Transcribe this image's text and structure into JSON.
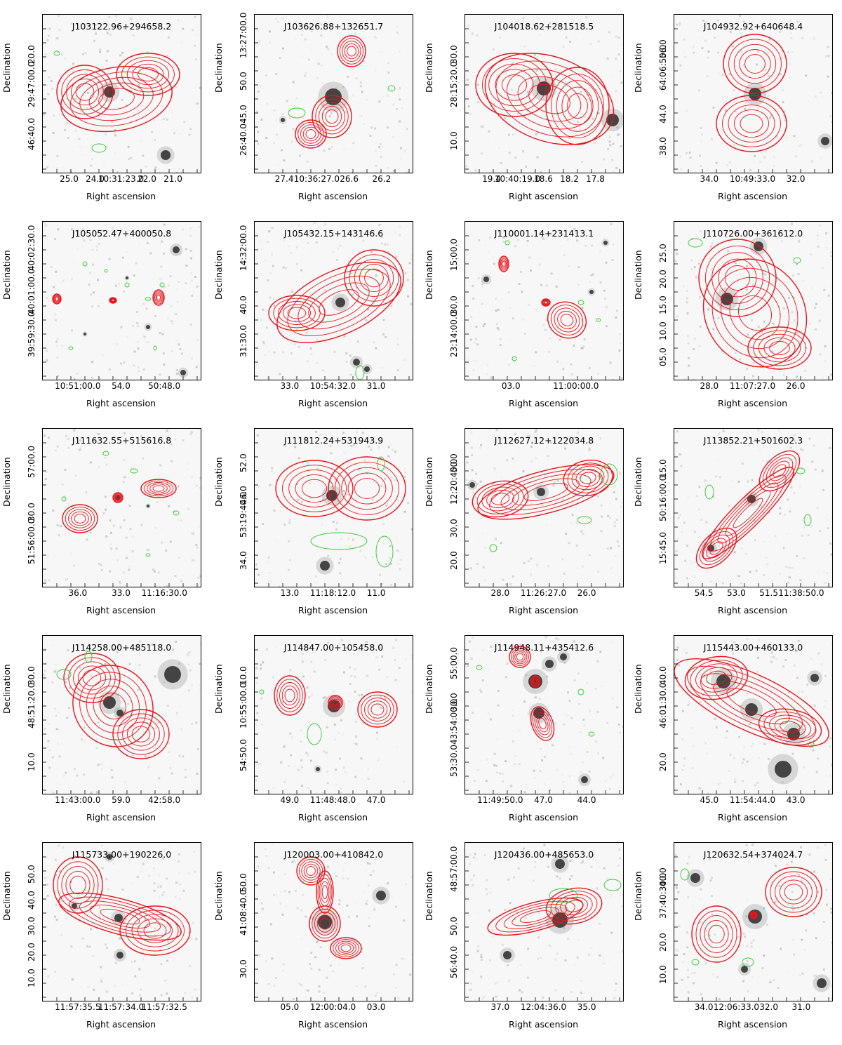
{
  "colors": {
    "radio": "#e8141b",
    "optical": "#2ecc2e",
    "frame": "#000000"
  },
  "axis": {
    "xlabel": "Right ascension",
    "ylabel": "Declination"
  },
  "panels": [
    {
      "title": "J103122.96+294658.2",
      "yticks": [
        "20.0",
        "29:47:00.0",
        "46:40.0"
      ],
      "xticks": [
        "25.0",
        "24.0",
        "10:31:23.0",
        "22.0",
        "21.0"
      ]
    },
    {
      "title": "J103626.88+132651.7",
      "yticks": [
        "13:27:00.0",
        "50.0",
        "45.0",
        "26:40.0"
      ],
      "xticks": [
        "27.4",
        "10:36:27.0",
        "26.6",
        "26.2"
      ]
    },
    {
      "title": "J104018.62+281518.5",
      "yticks": [
        "30.0",
        "28:15:20.0",
        "10.0"
      ],
      "xticks": [
        "19.4",
        "10:40:19.0",
        "18.6",
        "18.2",
        "17.8"
      ]
    },
    {
      "title": "J104932.92+640648.4",
      "yticks": [
        "56.0",
        "64:06:50.0",
        "44.0",
        "38.0"
      ],
      "xticks": [
        "34.0",
        "10:49:33.0",
        "32.0"
      ]
    },
    {
      "title": "J105052.47+400050.8",
      "yticks": [
        "40:02:30.0",
        "40:01:00.0",
        "39:59:30.0"
      ],
      "xticks": [
        "10:51:00.0",
        "54.0",
        "50:48.0"
      ]
    },
    {
      "title": "J105432.15+143146.6",
      "yticks": [
        "14:32:00.0",
        "40.0",
        "31:30.0"
      ],
      "xticks": [
        "33.0",
        "10:54:32.0",
        "31.0"
      ]
    },
    {
      "title": "J110001.14+231413.1",
      "yticks": [
        "15:00.0",
        "30.0",
        "23:14:00.0"
      ],
      "xticks": [
        "03.0",
        "11:00:00.0"
      ]
    },
    {
      "title": "J110726.00+361612.0",
      "yticks": [
        "25.0",
        "20.0",
        "15.0",
        "10.0",
        "05.0"
      ],
      "xticks": [
        "28.0",
        "11:07:27.0",
        "26.0"
      ]
    },
    {
      "title": "J111632.55+515616.8",
      "yticks": [
        "57:00.0",
        "30.0",
        "51:56:00.0"
      ],
      "xticks": [
        "36.0",
        "33.0",
        "11:16:30.0"
      ]
    },
    {
      "title": "J111812.24+531943.9",
      "yticks": [
        "52.0",
        "46.0",
        "53:19:40.0",
        "34.0"
      ],
      "xticks": [
        "13.0",
        "11:18:12.0",
        "11.0"
      ]
    },
    {
      "title": "J112627.12+122034.8",
      "yticks": [
        "50.0",
        "12:20:40.0",
        "30.0",
        "20.0"
      ],
      "xticks": [
        "28.0",
        "11:26:27.0",
        "26.0"
      ]
    },
    {
      "title": "J113852.21+501602.3",
      "yticks": [
        "15.0",
        "50:16:00.0",
        "15:45.0"
      ],
      "xticks": [
        "54.5",
        "53.0",
        "51.5",
        "11:38:50.0"
      ]
    },
    {
      "title": "J114258.00+485118.0",
      "yticks": [
        "30.0",
        "48:51:20.0",
        "10.0"
      ],
      "xticks": [
        "11:43:00.0",
        "59.0",
        "42:58.0"
      ]
    },
    {
      "title": "J114847.00+105458.0",
      "yticks": [
        "10.0",
        "10:55:00.0",
        "54:50.0"
      ],
      "xticks": [
        "49.0",
        "11:48:48.0",
        "47.0"
      ]
    },
    {
      "title": "J114948.11+435412.6",
      "yticks": [
        "55:00.0",
        "30.0",
        "43:54:00.0",
        "53:30.0"
      ],
      "xticks": [
        "11:49:50.0",
        "47.0",
        "44.0"
      ]
    },
    {
      "title": "J115443.00+460133.0",
      "yticks": [
        "40.0",
        "46:01:30.0",
        "20.0"
      ],
      "xticks": [
        "45.0",
        "11:54:44.0",
        "43.0"
      ]
    },
    {
      "title": "J115733.00+190226.0",
      "yticks": [
        "50.0",
        "40.0",
        "30.0",
        "20.0",
        "10.0"
      ],
      "xticks": [
        "11:57:35.5",
        "11:57:34.0",
        "11:57:32.5"
      ]
    },
    {
      "title": "J120003.00+410842.0",
      "yticks": [
        "50.0",
        "41:08:40.0",
        "30.0"
      ],
      "xticks": [
        "05.0",
        "12:00:04.0",
        "03.0"
      ]
    },
    {
      "title": "J120436.00+485653.0",
      "yticks": [
        "48:57:00.0",
        "50.0",
        "56:40.0"
      ],
      "xticks": [
        "37.0",
        "12:04:36.0",
        "35.0"
      ]
    },
    {
      "title": "J120632.54+374024.7",
      "yticks": [
        "40.0",
        "37:40:30.0",
        "20.0",
        "10.0"
      ],
      "xticks": [
        "34.0",
        "12:06:33.0",
        "32.0",
        "31.0"
      ]
    }
  ]
}
